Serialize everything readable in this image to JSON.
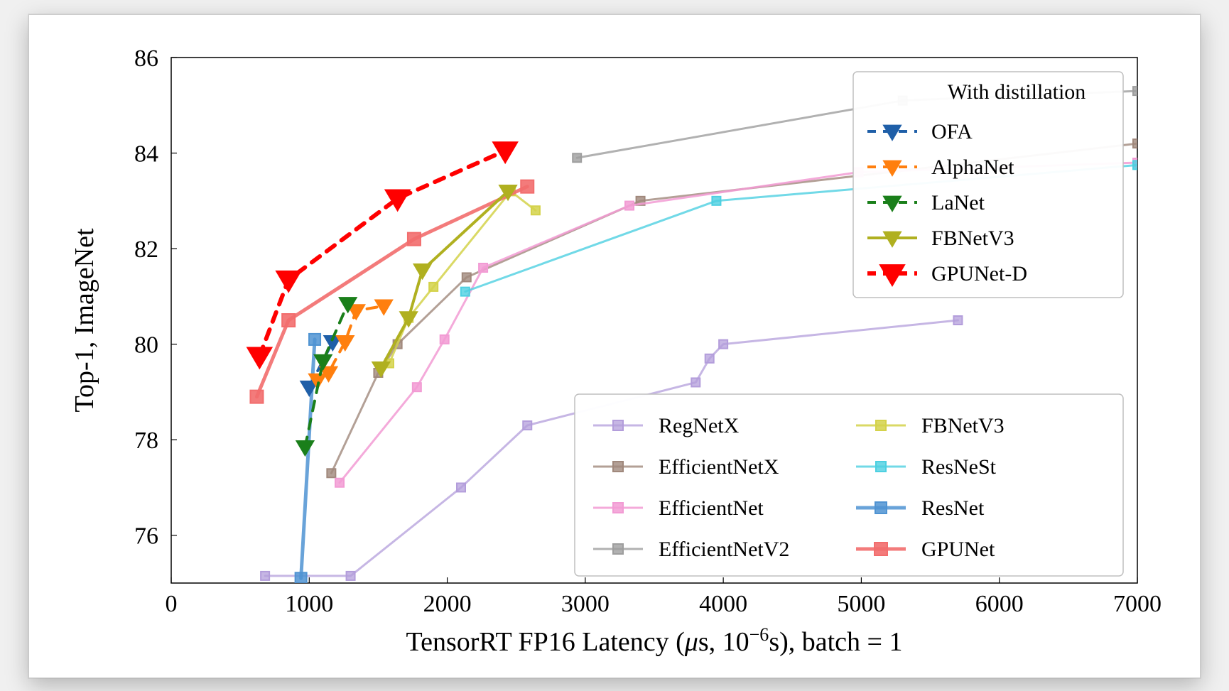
{
  "chart": {
    "type": "line_scatter_paretto",
    "background_color": "#ffffff",
    "plot_border_color": "#000000",
    "plot_border_width": 1.5,
    "card_border_color": "#cccccc",
    "xlabel": "TensorRT FP16 Latency (μs, 10⁻⁶s), batch = 1",
    "ylabel": "Top-1, ImageNet",
    "xlabel_fontsize": 38,
    "ylabel_fontsize": 38,
    "tick_fontsize": 34,
    "xlim": [
      0,
      7000
    ],
    "ylim": [
      75,
      86
    ],
    "xticks": [
      0,
      1000,
      2000,
      3000,
      4000,
      5000,
      6000,
      7000
    ],
    "yticks": [
      76,
      78,
      80,
      82,
      84,
      86
    ],
    "tick_inward": true,
    "tick_length": 8,
    "legend1": {
      "title": "With distillation",
      "title_fontsize": 30,
      "fontsize": 30,
      "border_color": "#bfbfbf",
      "background": "#ffffff",
      "border_radius": 6,
      "position": "top-right"
    },
    "legend2": {
      "fontsize": 30,
      "border_color": "#bfbfbf",
      "background": "#ffffff",
      "border_radius": 6,
      "position": "bottom-right",
      "columns": 2
    },
    "series": [
      {
        "name": "RegNetX",
        "color": "#b39ddb",
        "alpha": 0.75,
        "marker": "square",
        "marker_size": 12,
        "line_width": 3,
        "dash": "solid",
        "legend_group": 2,
        "data": [
          [
            680,
            75.15
          ],
          [
            1300,
            75.15
          ],
          [
            2100,
            77.0
          ],
          [
            2580,
            78.3
          ],
          [
            3800,
            79.2
          ],
          [
            3900,
            79.7
          ],
          [
            4000,
            80.0
          ],
          [
            5700,
            80.5
          ]
        ]
      },
      {
        "name": "EfficientNetX",
        "color": "#a0887c",
        "alpha": 0.8,
        "marker": "square",
        "marker_size": 12,
        "line_width": 3,
        "dash": "solid",
        "legend_group": 2,
        "data": [
          [
            1160,
            77.3
          ],
          [
            1500,
            79.4
          ],
          [
            1640,
            80.0
          ],
          [
            2140,
            81.4
          ],
          [
            3400,
            83.0
          ],
          [
            7000,
            84.2
          ]
        ]
      },
      {
        "name": "EfficientNet",
        "color": "#f29bd4",
        "alpha": 0.85,
        "marker": "square",
        "marker_size": 12,
        "line_width": 3,
        "dash": "solid",
        "legend_group": 2,
        "data": [
          [
            1220,
            77.1
          ],
          [
            1780,
            79.1
          ],
          [
            1980,
            80.1
          ],
          [
            2260,
            81.6
          ],
          [
            3320,
            82.9
          ],
          [
            4980,
            83.6
          ],
          [
            7000,
            83.8
          ]
        ]
      },
      {
        "name": "EfficientNetV2",
        "color": "#9e9e9e",
        "alpha": 0.8,
        "marker": "square",
        "marker_size": 12,
        "line_width": 3,
        "dash": "solid",
        "legend_group": 2,
        "data": [
          [
            2940,
            83.9
          ],
          [
            5300,
            85.1
          ],
          [
            7000,
            85.3
          ]
        ]
      },
      {
        "name": "FBNetV3",
        "color": "#d4d24a",
        "alpha": 0.85,
        "marker": "square",
        "marker_size": 12,
        "line_width": 3,
        "dash": "solid",
        "legend_group": 2,
        "legend_name": "FBNetV3",
        "data": [
          [
            1580,
            79.6
          ],
          [
            1720,
            80.55
          ],
          [
            1900,
            81.2
          ],
          [
            2460,
            83.2
          ],
          [
            2640,
            82.8
          ]
        ]
      },
      {
        "name": "ResNeSt",
        "color": "#4dd0e1",
        "alpha": 0.8,
        "marker": "square",
        "marker_size": 12,
        "line_width": 3,
        "dash": "solid",
        "legend_group": 2,
        "data": [
          [
            2130,
            81.1
          ],
          [
            3950,
            83.0
          ],
          [
            7000,
            83.75
          ]
        ]
      },
      {
        "name": "ResNet",
        "color": "#4f93d2",
        "alpha": 0.85,
        "marker": "square",
        "marker_size": 16,
        "line_width": 5,
        "dash": "solid",
        "legend_group": 2,
        "data": [
          [
            940,
            75.1
          ],
          [
            1040,
            80.1
          ]
        ]
      },
      {
        "name": "GPUNet",
        "color": "#f26d6d",
        "alpha": 0.9,
        "marker": "square",
        "marker_size": 18,
        "line_width": 5,
        "dash": "solid",
        "legend_group": 2,
        "data": [
          [
            620,
            78.9
          ],
          [
            850,
            80.5
          ],
          [
            1760,
            82.2
          ],
          [
            2580,
            83.3
          ]
        ]
      },
      {
        "name": "OFA",
        "color": "#1f5fa8",
        "alpha": 1.0,
        "marker": "triangle_down",
        "marker_size": 14,
        "line_width": 4,
        "dash": "dashed",
        "legend_group": 1,
        "data": [
          [
            1000,
            79.1
          ],
          [
            1170,
            80.05
          ]
        ]
      },
      {
        "name": "AlphaNet",
        "color": "#ff7f0e",
        "alpha": 1.0,
        "marker": "triangle_down",
        "marker_size": 14,
        "line_width": 4,
        "dash": "dashed",
        "legend_group": 1,
        "data": [
          [
            1060,
            79.25
          ],
          [
            1140,
            79.4
          ],
          [
            1260,
            80.05
          ],
          [
            1340,
            80.7
          ],
          [
            1540,
            80.8
          ]
        ]
      },
      {
        "name": "LaNet",
        "color": "#1a7f1a",
        "alpha": 1.0,
        "marker": "triangle_down",
        "marker_size": 14,
        "line_width": 4,
        "dash": "dashed",
        "legend_group": 1,
        "data": [
          [
            970,
            77.85
          ],
          [
            1100,
            79.65
          ],
          [
            1280,
            80.85
          ]
        ]
      },
      {
        "name": "FBNetV3_d",
        "label": "FBNetV3",
        "color": "#b0b020",
        "alpha": 1.0,
        "marker": "triangle_down",
        "marker_size": 14,
        "line_width": 4,
        "dash": "solid",
        "legend_group": 1,
        "data": [
          [
            1520,
            79.5
          ],
          [
            1720,
            80.55
          ],
          [
            1820,
            81.55
          ],
          [
            2440,
            83.2
          ]
        ]
      },
      {
        "name": "GPUNet-D",
        "color": "#ff0000",
        "alpha": 1.0,
        "marker": "triangle_down",
        "marker_size": 20,
        "line_width": 6,
        "dash": "dashed",
        "legend_group": 1,
        "data": [
          [
            640,
            79.75
          ],
          [
            850,
            81.35
          ],
          [
            1640,
            83.05
          ],
          [
            2420,
            84.05
          ]
        ]
      }
    ]
  }
}
